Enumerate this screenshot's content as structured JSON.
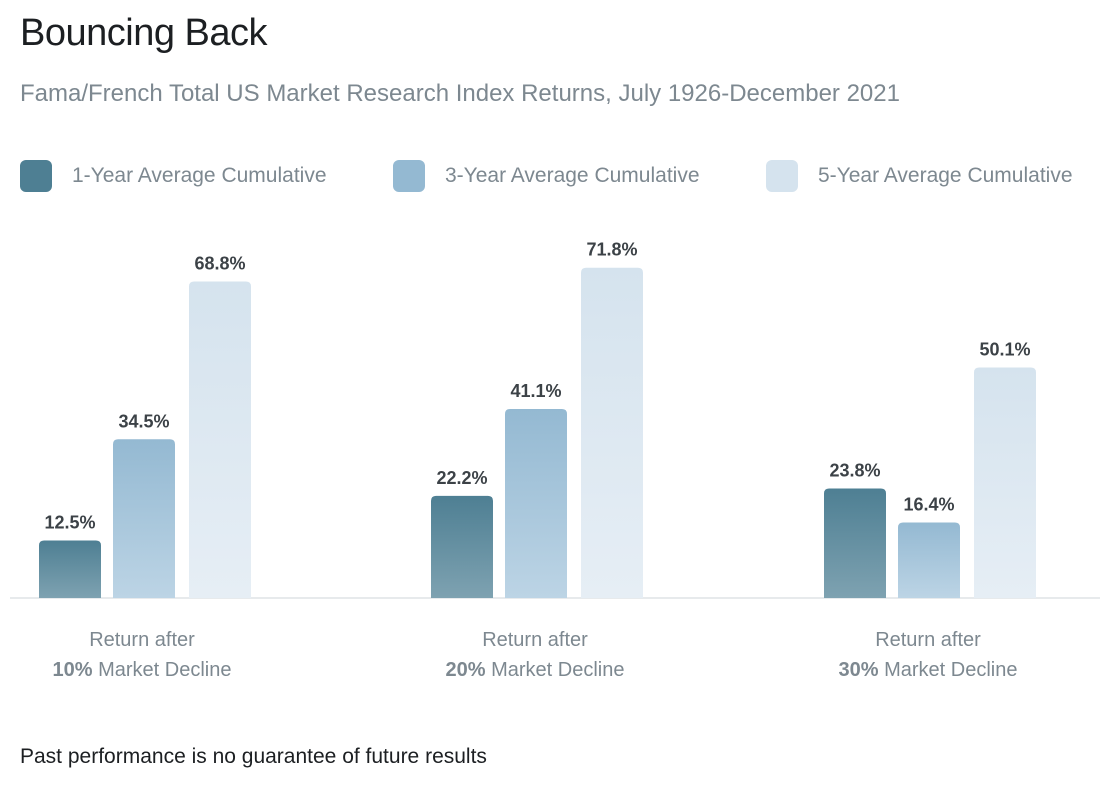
{
  "chart_data": {
    "type": "bar",
    "title": "Bouncing Back",
    "subtitle": "Fama/French Total US Market Research Index Returns, July 1926-December 2021",
    "categories": [
      {
        "line1": "Return after",
        "bold": "10%",
        "rest": " Market Decline"
      },
      {
        "line1": "Return after",
        "bold": "20%",
        "rest": " Market Decline"
      },
      {
        "line1": "Return after",
        "bold": "30%",
        "rest": " Market Decline"
      }
    ],
    "series": [
      {
        "name": "1-Year Average Cumulative",
        "values": [
          12.5,
          22.2,
          23.8
        ],
        "labels": [
          "12.5%",
          "22.2%",
          "23.8%"
        ],
        "color_top": "#4e7f93",
        "color_bottom": "#7ea2b1"
      },
      {
        "name": "3-Year Average Cumulative",
        "values": [
          34.5,
          41.1,
          16.4
        ],
        "labels": [
          "34.5%",
          "41.1%",
          "16.4%"
        ],
        "color_top": "#94b9d2",
        "color_bottom": "#bcd4e5"
      },
      {
        "name": "5-Year Average Cumulative",
        "values": [
          68.8,
          71.8,
          50.1
        ],
        "labels": [
          "68.8%",
          "71.8%",
          "50.1%"
        ],
        "color_top": "#d5e3ee",
        "color_bottom": "#e6eef5"
      }
    ],
    "ylim": [
      0,
      75
    ],
    "legend_position": "top",
    "grid": false,
    "footnote": "Past performance is no guarantee of future results"
  }
}
